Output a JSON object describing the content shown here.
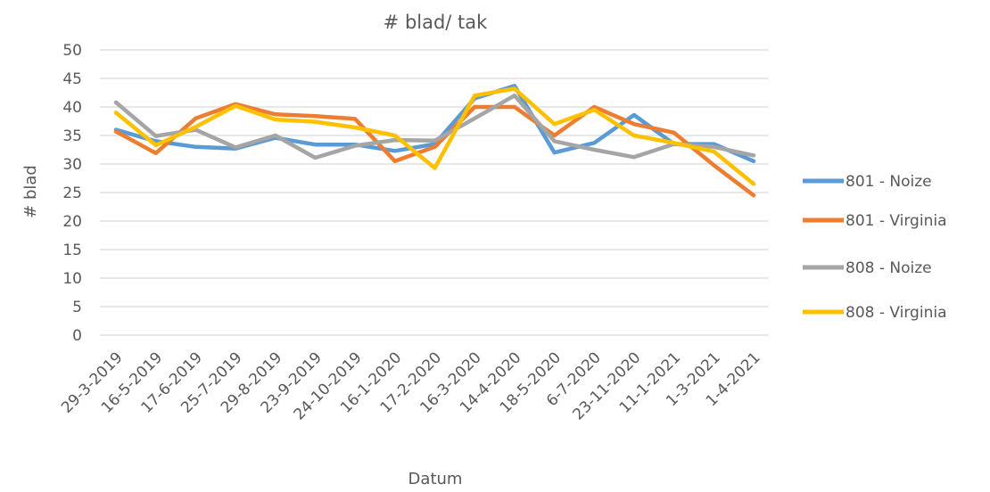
{
  "chart_data": {
    "type": "line",
    "title": "# blad/ tak",
    "xlabel": "Datum",
    "ylabel": "# blad",
    "ylim": [
      0,
      50
    ],
    "yticks": [
      0,
      5,
      10,
      15,
      20,
      25,
      30,
      35,
      40,
      45,
      50
    ],
    "grid": true,
    "legend_position": "right",
    "categories": [
      "29-3-2019",
      "16-5-2019",
      "17-6-2019",
      "25-7-2019",
      "29-8-2019",
      "23-9-2019",
      "24-10-2019",
      "16-1-2020",
      "17-2-2020",
      "16-3-2020",
      "14-4-2020",
      "18-5-2020",
      "6-7-2020",
      "23-11-2020",
      "11-1-2021",
      "1-3-2021",
      "1-4-2021"
    ],
    "series": [
      {
        "name": "801 - Noize",
        "color": "#5b9bd5",
        "values": [
          36.0,
          34.0,
          33.0,
          32.7,
          34.6,
          33.4,
          33.4,
          32.3,
          33.5,
          41.5,
          43.7,
          32.0,
          33.7,
          38.6,
          33.5,
          33.5,
          30.5
        ]
      },
      {
        "name": "801 - Virginia",
        "color": "#ed7d31",
        "values": [
          35.7,
          31.9,
          38.0,
          40.5,
          38.7,
          38.4,
          37.9,
          30.5,
          33.0,
          40.0,
          40.0,
          35.0,
          40.0,
          37.0,
          35.5,
          29.8,
          24.5
        ]
      },
      {
        "name": "808 - Noize",
        "color": "#a5a5a5",
        "values": [
          40.8,
          34.9,
          36.0,
          32.9,
          35.0,
          31.1,
          33.2,
          34.2,
          34.1,
          38.0,
          42.0,
          34.0,
          32.5,
          31.2,
          33.5,
          33.0,
          31.5
        ]
      },
      {
        "name": "808 - Virginia",
        "color": "#ffc000",
        "values": [
          39.0,
          33.3,
          36.5,
          40.2,
          37.8,
          37.4,
          36.4,
          35.0,
          29.3,
          42.0,
          43.2,
          37.0,
          39.5,
          35.0,
          33.7,
          32.2,
          26.5
        ]
      }
    ]
  }
}
